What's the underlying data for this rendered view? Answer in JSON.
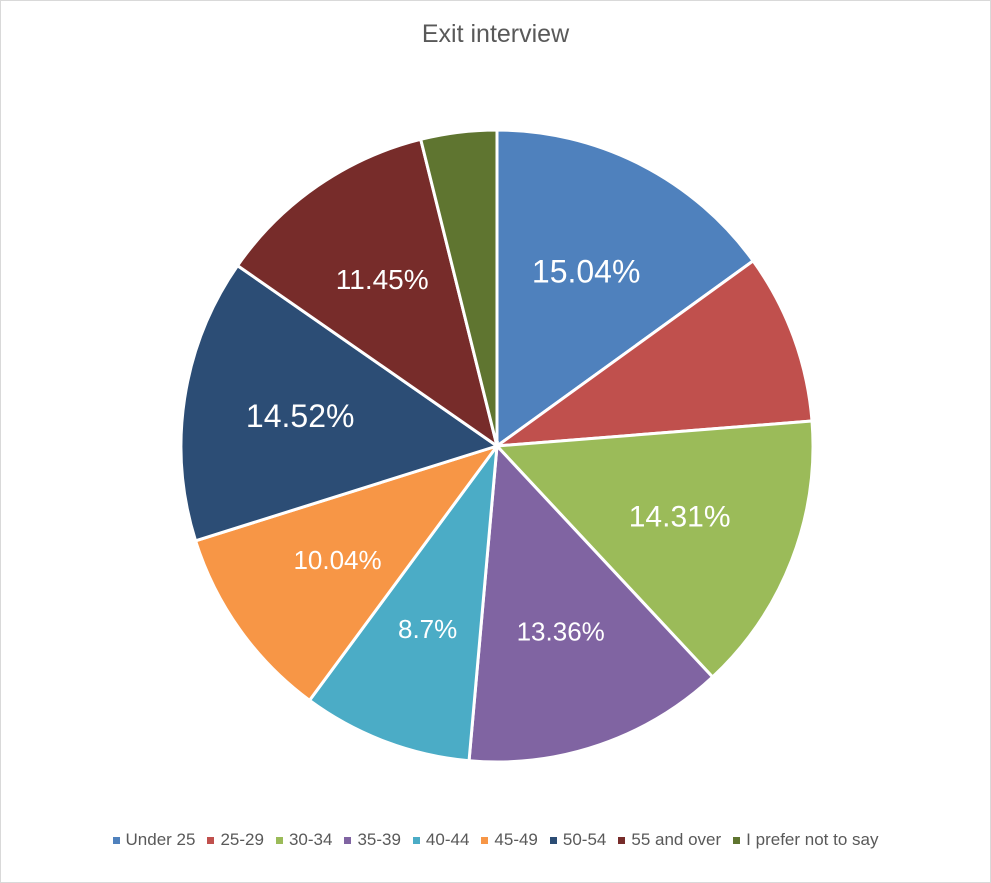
{
  "chart_data": {
    "type": "pie",
    "title": "Exit interview",
    "categories": [
      "Under 25",
      "25-29",
      "30-34",
      "35-39",
      "40-44",
      "45-49",
      "50-54",
      "55 and over",
      "I prefer not to say"
    ],
    "values": [
      15.04,
      8.7,
      14.31,
      13.36,
      8.7,
      10.04,
      14.52,
      11.45,
      3.88
    ],
    "data_labels": [
      "15.04%",
      "",
      "14.31%",
      "13.36%",
      "8.7%",
      "10.04%",
      "14.52%",
      "11.45%",
      ""
    ],
    "colors": [
      "#4f81bd",
      "#c0504d",
      "#9bbb59",
      "#8064a2",
      "#4bacc6",
      "#f79646",
      "#2c4d75",
      "#772c2a",
      "#5f7530"
    ],
    "legend_position": "bottom"
  }
}
